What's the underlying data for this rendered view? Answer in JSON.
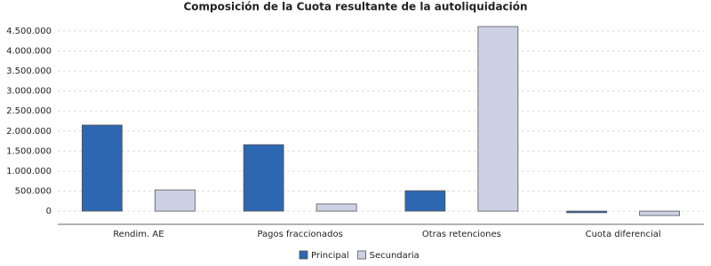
{
  "chart_data": {
    "type": "bar",
    "title": "Composición de la Cuota resultante de la autoliquidación",
    "categories": [
      "Rendim. AE",
      "Pagos fraccionados",
      "Otras retenciones",
      "Cuota diferencial"
    ],
    "series": [
      {
        "name": "Principal",
        "color": "#2e67b1",
        "values": [
          2150000,
          1660000,
          510000,
          -40000
        ]
      },
      {
        "name": "Secundaria",
        "color": "#cdd1e5",
        "values": [
          530000,
          180000,
          4610000,
          -110000
        ]
      }
    ],
    "ylim": [
      -330000,
      4720000
    ],
    "yticks": [
      0,
      {
        "value": 500000,
        "label": "500.000"
      },
      {
        "value": 1000000,
        "label": "1.000.000"
      },
      {
        "value": 1500000,
        "label": "1.500.000"
      },
      {
        "value": 2000000,
        "label": "2.000.000"
      },
      {
        "value": 2500000,
        "label": "2.500.000"
      },
      {
        "value": 3000000,
        "label": "3.000.000"
      },
      {
        "value": 3500000,
        "label": "3.500.000"
      },
      {
        "value": 4000000,
        "label": "4.000.000"
      },
      {
        "value": 4500000,
        "label": "4.500.000"
      }
    ],
    "grid": true,
    "legend": "bottom"
  }
}
